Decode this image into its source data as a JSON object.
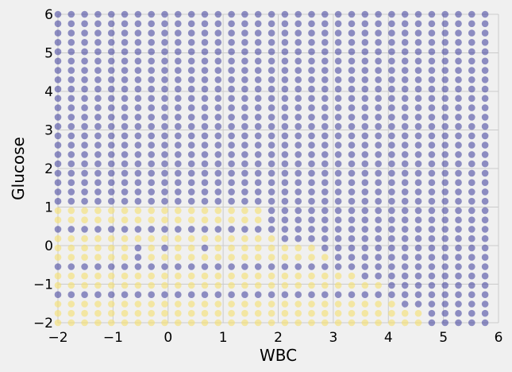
{
  "chart_data": {
    "type": "scatter",
    "xlabel": "WBC",
    "ylabel": "Glucose",
    "xlim": [
      -2,
      6
    ],
    "ylim": [
      -2,
      6
    ],
    "xticks": [
      -2,
      -1,
      0,
      1,
      2,
      3,
      4,
      5,
      6
    ],
    "yticks": [
      -2,
      -1,
      0,
      1,
      2,
      3,
      4,
      5,
      6
    ],
    "grid": true,
    "background_color": "#f0f0f0",
    "grid_color": "#cbcbcb",
    "grid_x_start": -2,
    "grid_y_start": -2,
    "grid_step": 0.2424,
    "grid_nx": 33,
    "grid_ny": 34,
    "series": [
      {
        "color": "#3a3a9a",
        "opacity": 0.55,
        "description_rule": "class A fills all grid cells not listed in class B"
      },
      {
        "color": "#f5e06e",
        "opacity": 0.6,
        "cells_by_row_y": [
          {
            "y": 0.8,
            "x_range": [
              -2,
              1.8
            ]
          },
          {
            "y": 0.55,
            "x_range": [
              -2,
              1.8
            ]
          },
          {
            "y": 0.3,
            "x_range": [
              -2,
              2.0
            ]
          },
          {
            "y": 0.06,
            "x_range": [
              -2,
              2.5
            ]
          },
          {
            "y": -0.18,
            "x_range": [
              -2,
              2.75
            ]
          },
          {
            "y": -0.42,
            "x_range": [
              -2,
              3.0
            ]
          },
          {
            "y": -0.67,
            "x_range": [
              -2,
              3.5
            ]
          },
          {
            "y": -0.91,
            "x_range": [
              -2,
              3.75
            ]
          },
          {
            "y": -1.15,
            "x_range": [
              -2,
              4.0
            ]
          },
          {
            "y": -1.4,
            "x_range": [
              -2,
              4.25
            ]
          },
          {
            "y": -1.64,
            "x_range": [
              -2,
              4.75
            ]
          },
          {
            "y": -1.88,
            "x_range": [
              -2,
              4.75
            ]
          }
        ],
        "exceptions_purple": [
          {
            "x": -0.5,
            "y": -0.18
          },
          {
            "x": -0.5,
            "y": -0.42
          },
          {
            "x": 0.0,
            "y": 0.06
          },
          {
            "x": 0.75,
            "y": -0.18
          }
        ]
      }
    ]
  }
}
